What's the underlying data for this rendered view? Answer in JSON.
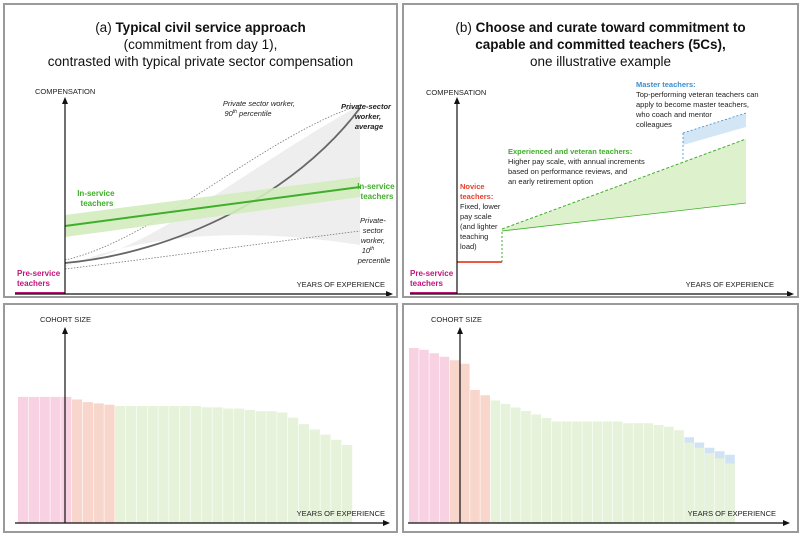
{
  "panel_a": {
    "title_prefix": "(a) ",
    "title_bold": "Typical civil service approach",
    "title_line2": "(commitment from day 1),",
    "title_line3": "contrasted with typical private sector compensation",
    "y_axis_label": "COMPENSATION",
    "x_axis_label": "YEARS OF EXPERIENCE",
    "pre_service": [
      "Pre-service",
      "teachers"
    ],
    "in_service_left": [
      "In-service",
      "teachers"
    ],
    "in_service_right": [
      "In-service",
      "teachers"
    ],
    "private_90": [
      "Private sector worker,",
      "90",
      "th",
      " percentile"
    ],
    "private_avg": [
      "Private-sector",
      "worker,",
      "average"
    ],
    "private_10": [
      "Private-",
      "sector",
      "worker,",
      "10",
      "th",
      "percentile"
    ]
  },
  "panel_b": {
    "title_prefix": "(b) ",
    "title_bold_1": "Choose and curate toward commitment to",
    "title_bold_2": "capable and committed teachers (5Cs),",
    "title_line3": "one illustrative example",
    "y_axis_label": "COMPENSATION",
    "x_axis_label": "YEARS OF EXPERIENCE",
    "pre_service": [
      "Pre-service",
      "teachers"
    ],
    "novice_head": [
      "Novice",
      "teachers:"
    ],
    "novice_body": [
      "Fixed, lower",
      "pay scale",
      "(and lighter",
      "teaching",
      "load)"
    ],
    "experienced_head": "Experienced and veteran teachers:",
    "experienced_body": [
      "Higher pay scale, with annual increments",
      "based on performance reviews, and",
      "an early retirement option"
    ],
    "master_head": "Master teachers:",
    "master_body": [
      "Top-performing veteran teachers can",
      "apply to become master teachers,",
      "who coach and mentor",
      "colleagues"
    ]
  },
  "panel_c": {
    "y_axis_label": "COHORT SIZE",
    "x_axis_label": "YEARS OF EXPERIENCE"
  },
  "panel_d": {
    "y_axis_label": "COHORT SIZE",
    "x_axis_label": "YEARS OF EXPERIENCE"
  },
  "colors": {
    "pre_service": "#c0147a",
    "in_service": "#3fae2a",
    "novice": "#e8402a",
    "master": "#3a8ed0",
    "private": "#555555",
    "bar_pink": "#f8d2e2",
    "bar_salmon": "#f9d6cc",
    "bar_green": "#e6f2d9",
    "bar_blue": "#cfe3f4"
  },
  "chart_data": [
    {
      "type": "bar",
      "title": "",
      "xlabel": "YEARS OF EXPERIENCE",
      "ylabel": "COHORT SIZE",
      "ylim": [
        0,
        1
      ],
      "groups": [
        "pre-service",
        "novice",
        "in-service"
      ],
      "values": [
        0.97,
        0.97,
        0.97,
        0.97,
        0.97,
        0.95,
        0.93,
        0.92,
        0.91,
        0.9,
        0.9,
        0.9,
        0.9,
        0.9,
        0.9,
        0.9,
        0.9,
        0.89,
        0.89,
        0.88,
        0.88,
        0.87,
        0.86,
        0.86,
        0.85,
        0.81,
        0.76,
        0.72,
        0.68,
        0.64,
        0.6
      ],
      "group_of_bar": [
        0,
        0,
        0,
        0,
        0,
        1,
        1,
        1,
        1,
        2,
        2,
        2,
        2,
        2,
        2,
        2,
        2,
        2,
        2,
        2,
        2,
        2,
        2,
        2,
        2,
        2,
        2,
        2,
        2,
        2,
        2
      ]
    },
    {
      "type": "bar",
      "title": "",
      "xlabel": "YEARS OF EXPERIENCE",
      "ylabel": "COHORT SIZE",
      "ylim": [
        0,
        1
      ],
      "groups": [
        "pre-service",
        "novice",
        "experienced",
        "master"
      ],
      "values": [
        1.0,
        0.99,
        0.97,
        0.95,
        0.93,
        0.91,
        0.76,
        0.73,
        0.7,
        0.68,
        0.66,
        0.64,
        0.62,
        0.6,
        0.58,
        0.58,
        0.58,
        0.58,
        0.58,
        0.58,
        0.58,
        0.57,
        0.57,
        0.57,
        0.56,
        0.55,
        0.53,
        0.49,
        0.46,
        0.43,
        0.41,
        0.39
      ],
      "group_of_bar": [
        0,
        0,
        0,
        0,
        1,
        1,
        1,
        1,
        2,
        2,
        2,
        2,
        2,
        2,
        2,
        2,
        2,
        2,
        2,
        2,
        2,
        2,
        2,
        2,
        2,
        2,
        2,
        3,
        3,
        3,
        3,
        3
      ],
      "overlay_values": [
        null,
        null,
        null,
        null,
        null,
        null,
        null,
        null,
        null,
        null,
        null,
        null,
        null,
        null,
        null,
        null,
        null,
        null,
        null,
        null,
        null,
        null,
        null,
        null,
        null,
        null,
        null,
        0.46,
        0.43,
        0.4,
        0.37,
        0.34
      ]
    }
  ]
}
